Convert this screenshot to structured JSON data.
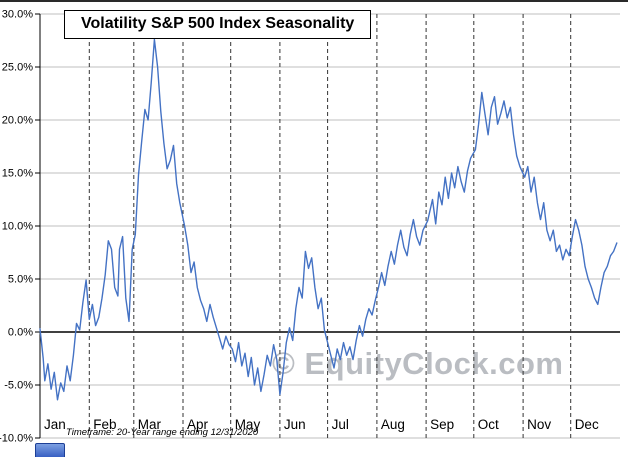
{
  "header": {
    "title": "Volatility S&P 500 Index Seasonality"
  },
  "watermark": "© EquityClock.com",
  "footnote": "Timeframe: 20-Year range ending 12/31/2020",
  "chart_data": {
    "type": "line",
    "title": "Volatility S&P 500 Index Seasonality",
    "xlabel": "",
    "ylabel": "",
    "ylim": [
      -10,
      30
    ],
    "days_in_year": 365,
    "grid": "horizontal solid gray, vertical dashed black at month starts, solid black zero line",
    "legend_position": "none",
    "yticks": [
      {
        "value": 30,
        "label": "30.0%"
      },
      {
        "value": 25,
        "label": "25.0%"
      },
      {
        "value": 20,
        "label": "20.0%"
      },
      {
        "value": 15,
        "label": "15.0%"
      },
      {
        "value": 10,
        "label": "10.0%"
      },
      {
        "value": 5,
        "label": "5.0%"
      },
      {
        "value": 0,
        "label": "0.0%"
      },
      {
        "value": -5,
        "label": "-5.0%"
      },
      {
        "value": -10,
        "label": "-10.0%"
      }
    ],
    "months": [
      "Jan",
      "Feb",
      "Mar",
      "Apr",
      "May",
      "Jun",
      "Jul",
      "Aug",
      "Sep",
      "Oct",
      "Nov",
      "Dec"
    ],
    "month_starts": [
      0,
      31,
      59,
      90,
      120,
      151,
      181,
      212,
      243,
      273,
      304,
      334
    ],
    "series": [
      {
        "name": "Volatility S&P 500 Index Seasonality (20-Year range ending 12/31/2020)",
        "color": "#4472c4",
        "points": [
          [
            0,
            0.3
          ],
          [
            2,
            -2.5
          ],
          [
            3,
            -4.6
          ],
          [
            5,
            -3
          ],
          [
            7,
            -5.4
          ],
          [
            9,
            -3.8
          ],
          [
            11,
            -6.4
          ],
          [
            13,
            -4.8
          ],
          [
            15,
            -5.6
          ],
          [
            17,
            -3.2
          ],
          [
            19,
            -4.6
          ],
          [
            21,
            -2.2
          ],
          [
            23,
            0.8
          ],
          [
            25,
            0.2
          ],
          [
            27,
            2.8
          ],
          [
            29,
            4.9
          ],
          [
            31,
            1.2
          ],
          [
            33,
            2.6
          ],
          [
            35,
            0.6
          ],
          [
            37,
            1.4
          ],
          [
            39,
            3.2
          ],
          [
            41,
            5.4
          ],
          [
            43,
            8.6
          ],
          [
            45,
            7.8
          ],
          [
            47,
            4.2
          ],
          [
            49,
            3.4
          ],
          [
            50,
            7.8
          ],
          [
            52,
            9
          ],
          [
            54,
            3.2
          ],
          [
            56,
            1
          ],
          [
            58,
            7.8
          ],
          [
            60,
            9.2
          ],
          [
            62,
            14.8
          ],
          [
            64,
            18
          ],
          [
            66,
            21
          ],
          [
            68,
            20
          ],
          [
            70,
            23.5
          ],
          [
            72,
            27.6
          ],
          [
            74,
            25
          ],
          [
            76,
            20.8
          ],
          [
            78,
            17.8
          ],
          [
            80,
            15.4
          ],
          [
            82,
            16.2
          ],
          [
            84,
            17.6
          ],
          [
            86,
            14
          ],
          [
            88,
            12.2
          ],
          [
            91,
            10
          ],
          [
            93,
            8.2
          ],
          [
            95,
            5.6
          ],
          [
            97,
            6.6
          ],
          [
            99,
            4.2
          ],
          [
            101,
            3
          ],
          [
            103,
            2.2
          ],
          [
            105,
            1
          ],
          [
            107,
            2.6
          ],
          [
            109,
            1.4
          ],
          [
            111,
            0.4
          ],
          [
            113,
            -0.6
          ],
          [
            115,
            -1.6
          ],
          [
            117,
            -0.4
          ],
          [
            119,
            -1.2
          ],
          [
            121,
            -1.6
          ],
          [
            123,
            -2.8
          ],
          [
            125,
            -1
          ],
          [
            127,
            -3.2
          ],
          [
            129,
            -2
          ],
          [
            131,
            -4.2
          ],
          [
            133,
            -2.4
          ],
          [
            135,
            -5
          ],
          [
            137,
            -3.4
          ],
          [
            139,
            -5.6
          ],
          [
            141,
            -4
          ],
          [
            143,
            -2.2
          ],
          [
            145,
            -3.2
          ],
          [
            147,
            -1.2
          ],
          [
            149,
            -2.6
          ],
          [
            151,
            -5.9
          ],
          [
            153,
            -3.8
          ],
          [
            155,
            -1
          ],
          [
            157,
            0.4
          ],
          [
            159,
            -0.8
          ],
          [
            161,
            2.2
          ],
          [
            163,
            4.2
          ],
          [
            165,
            3.2
          ],
          [
            167,
            7.6
          ],
          [
            169,
            6
          ],
          [
            171,
            7
          ],
          [
            173,
            4.2
          ],
          [
            175,
            2.2
          ],
          [
            177,
            3.2
          ],
          [
            179,
            0.2
          ],
          [
            181,
            -1
          ],
          [
            183,
            -2.2
          ],
          [
            185,
            -3.4
          ],
          [
            187,
            -1.6
          ],
          [
            189,
            -2.6
          ],
          [
            191,
            -1
          ],
          [
            193,
            -2.2
          ],
          [
            195,
            -1.4
          ],
          [
            197,
            -2.6
          ],
          [
            199,
            -0.8
          ],
          [
            201,
            0.6
          ],
          [
            203,
            -0.4
          ],
          [
            205,
            1.2
          ],
          [
            207,
            2.2
          ],
          [
            209,
            1.6
          ],
          [
            211,
            3
          ],
          [
            213,
            4.2
          ],
          [
            215,
            5.6
          ],
          [
            217,
            4.4
          ],
          [
            219,
            6.2
          ],
          [
            221,
            7.6
          ],
          [
            223,
            6.4
          ],
          [
            225,
            8.2
          ],
          [
            227,
            9.6
          ],
          [
            229,
            8
          ],
          [
            231,
            7.2
          ],
          [
            233,
            9.2
          ],
          [
            235,
            10.6
          ],
          [
            237,
            9
          ],
          [
            239,
            8.2
          ],
          [
            241,
            9.6
          ],
          [
            244,
            10.5
          ],
          [
            247,
            12.5
          ],
          [
            249,
            10.2
          ],
          [
            251,
            13.2
          ],
          [
            253,
            12
          ],
          [
            255,
            14.6
          ],
          [
            257,
            12.6
          ],
          [
            259,
            15
          ],
          [
            261,
            13.6
          ],
          [
            263,
            15.6
          ],
          [
            265,
            14.2
          ],
          [
            267,
            13.2
          ],
          [
            269,
            15.2
          ],
          [
            271,
            16.4
          ],
          [
            274,
            17.2
          ],
          [
            276,
            19.6
          ],
          [
            278,
            22.6
          ],
          [
            280,
            20.6
          ],
          [
            282,
            18.6
          ],
          [
            284,
            21.2
          ],
          [
            286,
            22.2
          ],
          [
            288,
            19.6
          ],
          [
            290,
            20.6
          ],
          [
            292,
            21.8
          ],
          [
            294,
            20.2
          ],
          [
            296,
            21.2
          ],
          [
            298,
            18.6
          ],
          [
            300,
            16.6
          ],
          [
            302,
            15.6
          ],
          [
            305,
            14.6
          ],
          [
            307,
            15.6
          ],
          [
            309,
            13.2
          ],
          [
            311,
            14.6
          ],
          [
            313,
            12.2
          ],
          [
            315,
            10.6
          ],
          [
            317,
            12.2
          ],
          [
            319,
            9.6
          ],
          [
            321,
            8.6
          ],
          [
            323,
            9.6
          ],
          [
            325,
            7.6
          ],
          [
            327,
            8.2
          ],
          [
            329,
            6.8
          ],
          [
            331,
            7.8
          ],
          [
            333,
            7.2
          ],
          [
            335,
            9
          ],
          [
            337,
            10.6
          ],
          [
            339,
            9.6
          ],
          [
            341,
            8.2
          ],
          [
            343,
            6.2
          ],
          [
            345,
            5
          ],
          [
            347,
            4.2
          ],
          [
            349,
            3.2
          ],
          [
            351,
            2.6
          ],
          [
            353,
            4.2
          ],
          [
            355,
            5.6
          ],
          [
            357,
            6.2
          ],
          [
            359,
            7.2
          ],
          [
            361,
            7.6
          ],
          [
            363,
            8.4
          ]
        ]
      }
    ]
  }
}
